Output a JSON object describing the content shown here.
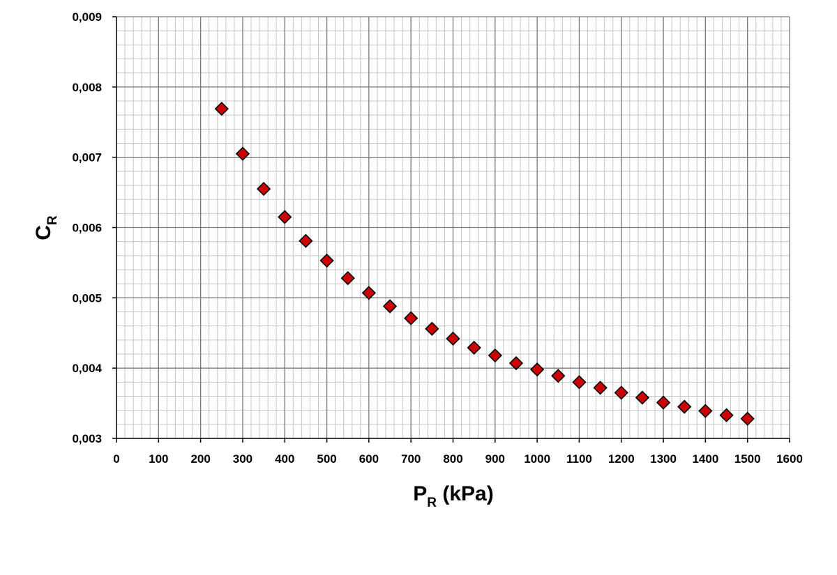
{
  "chart_data": {
    "type": "scatter",
    "xlabel": "P",
    "xlabel_sub": "R",
    "xlabel_unit": " (kPa)",
    "ylabel": "C",
    "ylabel_sub": "R",
    "xlim": [
      0,
      1600
    ],
    "ylim": [
      0.003,
      0.009
    ],
    "x_major_step": 100,
    "x_minor_step": 20,
    "y_major_step": 0.001,
    "y_minor_step": 0.0002,
    "x_tick_labels": [
      "0",
      "100",
      "200",
      "300",
      "400",
      "500",
      "600",
      "700",
      "800",
      "900",
      "1000",
      "1100",
      "1200",
      "1300",
      "1400",
      "1500",
      "1600"
    ],
    "y_tick_labels": [
      "0,003",
      "0,004",
      "0,005",
      "0,006",
      "0,007",
      "0,008",
      "0,009"
    ],
    "grid": true,
    "legend": "none",
    "marker": "diamond",
    "marker_color": "#cc0000",
    "marker_edge": "#000000",
    "series": [
      {
        "x": [
          250,
          300,
          350,
          400,
          450,
          500,
          550,
          600,
          650,
          700,
          750,
          800,
          850,
          900,
          950,
          1000,
          1050,
          1100,
          1150,
          1200,
          1250,
          1300,
          1350,
          1400,
          1450,
          1500
        ],
        "values": [
          0.00769,
          0.00705,
          0.00655,
          0.00615,
          0.00581,
          0.00553,
          0.00528,
          0.00507,
          0.00488,
          0.00471,
          0.00456,
          0.00442,
          0.00429,
          0.00418,
          0.00407,
          0.00398,
          0.00389,
          0.0038,
          0.00372,
          0.00365,
          0.00358,
          0.00351,
          0.00345,
          0.00339,
          0.00333,
          0.00328
        ]
      }
    ]
  }
}
